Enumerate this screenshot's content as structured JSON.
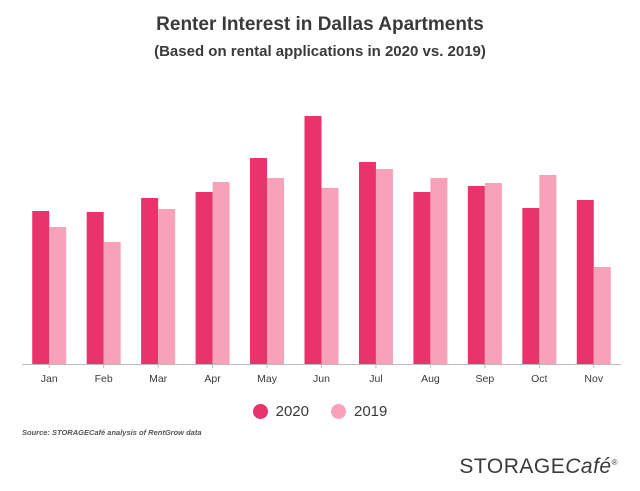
{
  "title": "Renter Interest in Dallas Apartments",
  "subtitle": "(Based on rental applications in 2020 vs. 2019)",
  "source": "Source: STORAGECafé analysis of RentGrow data",
  "brand": {
    "main": "STORAGE",
    "accent": "Café",
    "mark": "®"
  },
  "colors": {
    "2020": "#e8336c",
    "2019": "#f8a1bb",
    "axis": "#bbbbbb",
    "text": "#3a3a3a"
  },
  "chart_data": {
    "type": "bar",
    "title": "Renter Interest in Dallas Apartments",
    "subtitle": "(Based on rental applications in 2020 vs. 2019)",
    "categories": [
      "Jan",
      "Feb",
      "Mar",
      "Apr",
      "May",
      "Jun",
      "Jul",
      "Aug",
      "Sep",
      "Oct",
      "Nov"
    ],
    "series": [
      {
        "name": "2020",
        "values": [
          153,
          152,
          166,
          172,
          206,
          248,
          202,
          172,
          178,
          156,
          164
        ]
      },
      {
        "name": "2019",
        "values": [
          137,
          122,
          155,
          182,
          186,
          176,
          195,
          186,
          181,
          189,
          97
        ]
      }
    ],
    "ylim": [
      0,
      248
    ],
    "y_axis_shown": false,
    "grid": false,
    "legend_position": "bottom-center"
  }
}
